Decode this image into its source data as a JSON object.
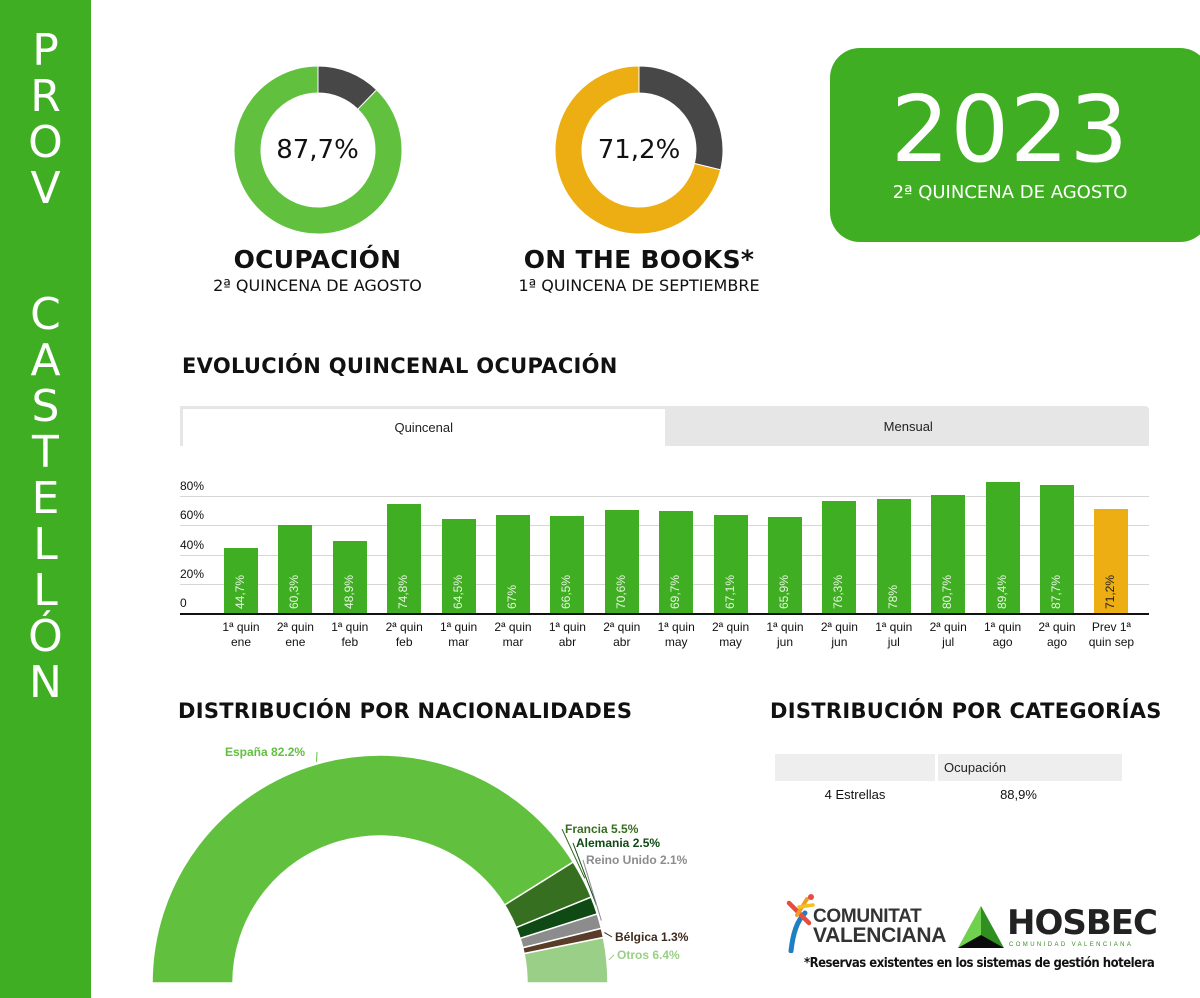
{
  "sidebar": {
    "word1": [
      "P",
      "R",
      "O",
      "V"
    ],
    "word2": [
      "C",
      "A",
      "S",
      "T",
      "E",
      "L",
      "L",
      "Ó",
      "N"
    ],
    "color": "#40ae23"
  },
  "kpis": [
    {
      "value": "87,7%",
      "percent": 87.7,
      "title": "OCUPACIÓN",
      "subtitle": "2ª QUINCENA DE AGOSTO",
      "fill_color": "#61c13f",
      "rest_color": "#474747"
    },
    {
      "value": "71,2%",
      "percent": 71.2,
      "title": "ON THE BOOKS*",
      "subtitle": "1ª QUINCENA DE SEPTIEMBRE",
      "fill_color": "#ecae12",
      "rest_color": "#474747"
    }
  ],
  "year_badge": {
    "year": "2023",
    "subtitle": "2ª QUINCENA DE AGOSTO"
  },
  "evolution": {
    "title": "EVOLUCIÓN QUINCENAL OCUPACIÓN",
    "tabs": [
      {
        "label": "Quincenal",
        "active": true
      },
      {
        "label": "Mensual",
        "active": false
      }
    ]
  },
  "nationalities": {
    "title": "DISTRIBUCIÓN POR NACIONALIDADES"
  },
  "categories": {
    "title": "DISTRIBUCIÓN POR CATEGORÍAS",
    "header": [
      "",
      "Ocupación"
    ],
    "rows": [
      [
        "4 Estrellas",
        "88,9%"
      ]
    ]
  },
  "logos": {
    "cv_line1": "COMUNITAT",
    "cv_line2": "VALENCIANA",
    "hosbec": "HOSBEC",
    "hosbec_sub": "COMUNIDAD VALENCIANA"
  },
  "footnote": "*Reservas existentes en los sistemas de gestión hotelera",
  "chart_data": [
    {
      "type": "bar",
      "title": "EVOLUCIÓN QUINCENAL OCUPACIÓN",
      "xlabel": "",
      "ylabel": "",
      "ylim": [
        0,
        80
      ],
      "yticks": [
        "0",
        "20%",
        "40%",
        "60%",
        "80%"
      ],
      "grid": true,
      "categories": [
        "1ª quin ene",
        "2ª quin ene",
        "1ª quin feb",
        "2ª quin feb",
        "1ª quin mar",
        "2ª quin mar",
        "1ª quin abr",
        "2ª quin abr",
        "1ª quin may",
        "2ª quin may",
        "1ª quin jun",
        "2ª quin jun",
        "1ª quin jul",
        "2ª quin jul",
        "1ª quin ago",
        "2ª quin ago",
        "Prev 1ª quin sep"
      ],
      "category_lines": [
        [
          "1ª quin",
          "ene"
        ],
        [
          "2ª quin",
          "ene"
        ],
        [
          "1ª quin",
          "feb"
        ],
        [
          "2ª quin",
          "feb"
        ],
        [
          "1ª quin",
          "mar"
        ],
        [
          "2ª quin",
          "mar"
        ],
        [
          "1ª quin",
          "abr"
        ],
        [
          "2ª quin",
          "abr"
        ],
        [
          "1ª quin",
          "may"
        ],
        [
          "2ª quin",
          "may"
        ],
        [
          "1ª quin",
          "jun"
        ],
        [
          "2ª quin",
          "jun"
        ],
        [
          "1ª quin",
          "jul"
        ],
        [
          "2ª quin",
          "jul"
        ],
        [
          "1ª quin",
          "ago"
        ],
        [
          "2ª quin",
          "ago"
        ],
        [
          "Prev 1ª",
          "quin sep"
        ]
      ],
      "values": [
        44.7,
        60.3,
        48.9,
        74.8,
        64.5,
        67,
        66.5,
        70.6,
        69.7,
        67.1,
        65.9,
        76.3,
        78,
        80.7,
        89.4,
        87.7,
        71.2
      ],
      "value_labels": [
        "44,7%",
        "60,3%",
        "48,9%",
        "74,8%",
        "64,5%",
        "67%",
        "66,5%",
        "70,6%",
        "69,7%",
        "67,1%",
        "65,9%",
        "76,3%",
        "78%",
        "80,7%",
        "89,4%",
        "87,7%",
        "71,2%"
      ],
      "colors": {
        "actual": "#40ae23",
        "forecast": "#ecae12"
      }
    },
    {
      "type": "pie",
      "title": "DISTRIBUCIÓN POR NACIONALIDADES",
      "style": "half-donut",
      "categories": [
        "España",
        "Francia",
        "Alemania",
        "Reino Unido",
        "Bélgica",
        "Otros"
      ],
      "values": [
        82.2,
        5.5,
        2.5,
        2.1,
        1.3,
        6.4
      ],
      "labels": [
        "España 82.2%",
        "Francia 5.5%",
        "Alemania 2.5%",
        "Reino Unido 2.1%",
        "Bélgica 1.3%",
        "Otros 6.4%"
      ],
      "colors": [
        "#61c13f",
        "#356f1f",
        "#0f4a14",
        "#8c8c8c",
        "#5a3d28",
        "#99cf86"
      ],
      "label_colors": [
        "#61c13f",
        "#356f1f",
        "#0f4a14",
        "#8c8c8c",
        "#3d2a1c",
        "#99cf86"
      ]
    },
    {
      "type": "pie",
      "title": "KPI Ocupación",
      "categories": [
        "Ocupado",
        "Libre"
      ],
      "values": [
        87.7,
        12.3
      ]
    },
    {
      "type": "pie",
      "title": "KPI On the books",
      "categories": [
        "Ocupado",
        "Libre"
      ],
      "values": [
        71.2,
        28.8
      ]
    }
  ]
}
